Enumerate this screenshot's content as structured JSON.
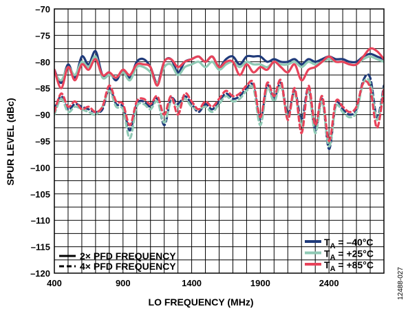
{
  "chart_data": {
    "type": "line",
    "xlabel": "LO FREQUENCY (MHz)",
    "ylabel": "SPUR LEVEL (dBc)",
    "xlim": [
      400,
      2800
    ],
    "ylim": [
      -120,
      -70
    ],
    "x_ticks": [
      400,
      900,
      1400,
      1900,
      2400
    ],
    "x_tick_labels": [
      "400",
      "900",
      "1400",
      "1900",
      "2400"
    ],
    "y_ticks": [
      -70,
      -75,
      -80,
      -85,
      -90,
      -95,
      -100,
      -105,
      -110,
      -115,
      -120
    ],
    "y_tick_labels": [
      "–70",
      "–75",
      "–80",
      "–85",
      "–90",
      "–95",
      "–100",
      "–105",
      "–110",
      "–115",
      "–120"
    ],
    "x_minor_step": 100,
    "y_minor_step": 2.5,
    "grid": true,
    "legend_style": {
      "position": "bottom-left",
      "items": [
        {
          "label": "2× PFD FREQUENCY",
          "dash": "solid"
        },
        {
          "label": "4× PFD FREQUENCY",
          "dash": "dashed"
        }
      ]
    },
    "legend_temp": {
      "position": "bottom-right",
      "items": [
        {
          "prefix": "T",
          "sub": "A",
          "suffix": " = –40°C",
          "color": "#1f3a7a"
        },
        {
          "prefix": "T",
          "sub": "A",
          "suffix": " = +25°C",
          "color": "#8fc9b4"
        },
        {
          "prefix": "T",
          "sub": "A",
          "suffix": " = +85°C",
          "color": "#e8435a"
        }
      ]
    },
    "side_code": "12488-027",
    "series": [
      {
        "temperature": "-40",
        "pfd": "2x",
        "dash": "solid",
        "color": "#1f3a7a",
        "x": [
          400,
          450,
          500,
          550,
          600,
          650,
          700,
          750,
          800,
          850,
          900,
          950,
          1000,
          1050,
          1100,
          1150,
          1200,
          1250,
          1300,
          1350,
          1400,
          1450,
          1500,
          1550,
          1600,
          1650,
          1700,
          1750,
          1800,
          1850,
          1900,
          1950,
          2000,
          2050,
          2100,
          2150,
          2200,
          2250,
          2300,
          2350,
          2400,
          2450,
          2500,
          2550,
          2600,
          2650,
          2700,
          2750,
          2800
        ],
        "y": [
          -81.5,
          -84,
          -80.5,
          -83,
          -79,
          -80.5,
          -78,
          -82.5,
          -82,
          -83.5,
          -81.5,
          -83,
          -80,
          -79.5,
          -81,
          -84,
          -80,
          -79.5,
          -82,
          -80,
          -79.5,
          -79,
          -80,
          -79,
          -81,
          -79.5,
          -79,
          -80.5,
          -79,
          -79,
          -79,
          -80,
          -79.5,
          -80,
          -80,
          -79.5,
          -80.5,
          -79.5,
          -80,
          -79.5,
          -79,
          -79.5,
          -79.5,
          -80,
          -80,
          -79,
          -78.5,
          -79,
          -79.5
        ]
      },
      {
        "temperature": "+25",
        "pfd": "2x",
        "dash": "solid",
        "color": "#8fc9b4",
        "x": [
          400,
          450,
          500,
          550,
          600,
          650,
          700,
          750,
          800,
          850,
          900,
          950,
          1000,
          1050,
          1100,
          1150,
          1200,
          1250,
          1300,
          1350,
          1400,
          1450,
          1500,
          1550,
          1600,
          1650,
          1700,
          1750,
          1800,
          1850,
          1900,
          1950,
          2000,
          2050,
          2100,
          2150,
          2200,
          2250,
          2300,
          2350,
          2400,
          2450,
          2500,
          2550,
          2600,
          2650,
          2700,
          2750,
          2800
        ],
        "y": [
          -82,
          -83.5,
          -81,
          -82.5,
          -80,
          -81,
          -79,
          -83,
          -82.5,
          -83,
          -82,
          -83.5,
          -81,
          -81,
          -82,
          -84,
          -81,
          -80.5,
          -82.5,
          -81,
          -80.5,
          -80,
          -81,
          -80,
          -81.5,
          -80.5,
          -80,
          -81,
          -80,
          -80.5,
          -80.5,
          -81,
          -80,
          -80.5,
          -80.5,
          -80,
          -81,
          -80,
          -80.5,
          -80,
          -79.5,
          -80,
          -80,
          -80.5,
          -80.5,
          -79.5,
          -79,
          -79.5,
          -80
        ]
      },
      {
        "temperature": "+85",
        "pfd": "2x",
        "dash": "solid",
        "color": "#e8435a",
        "x": [
          400,
          450,
          500,
          550,
          600,
          650,
          700,
          750,
          800,
          850,
          900,
          950,
          1000,
          1050,
          1100,
          1150,
          1200,
          1250,
          1300,
          1350,
          1400,
          1450,
          1500,
          1550,
          1600,
          1650,
          1700,
          1750,
          1800,
          1850,
          1900,
          1950,
          2000,
          2050,
          2100,
          2150,
          2200,
          2250,
          2300,
          2350,
          2400,
          2450,
          2500,
          2550,
          2600,
          2650,
          2700,
          2750,
          2800
        ],
        "y": [
          -81.5,
          -85,
          -81,
          -83.5,
          -80.5,
          -81.5,
          -79.5,
          -82.5,
          -82,
          -83,
          -81.5,
          -82.5,
          -80.5,
          -80.5,
          -81,
          -84.5,
          -80,
          -79.5,
          -81,
          -80,
          -79.5,
          -79,
          -80,
          -79,
          -81,
          -80,
          -80,
          -82.5,
          -80.5,
          -82,
          -81,
          -81.5,
          -80,
          -81,
          -82,
          -80.5,
          -83.5,
          -81.5,
          -81,
          -80,
          -79,
          -80,
          -80,
          -80.5,
          -80.5,
          -79,
          -77.5,
          -78,
          -79.5
        ]
      },
      {
        "temperature": "-40",
        "pfd": "4x",
        "dash": "dashed",
        "color": "#1f3a7a",
        "x": [
          400,
          450,
          500,
          550,
          600,
          650,
          700,
          750,
          800,
          850,
          900,
          950,
          1000,
          1050,
          1100,
          1150,
          1200,
          1250,
          1300,
          1350,
          1400,
          1450,
          1500,
          1550,
          1600,
          1650,
          1700,
          1750,
          1800,
          1850,
          1900,
          1950,
          2000,
          2050,
          2100,
          2150,
          2200,
          2250,
          2300,
          2350,
          2400,
          2450,
          2500,
          2550,
          2600,
          2650,
          2700,
          2750,
          2800
        ],
        "y": [
          -89,
          -86.5,
          -89,
          -88,
          -88.5,
          -89,
          -89.5,
          -89,
          -85,
          -88,
          -88.5,
          -93,
          -88,
          -87.5,
          -88.5,
          -87,
          -92,
          -87,
          -88,
          -86.5,
          -88,
          -89.5,
          -88,
          -89,
          -87.5,
          -86,
          -87,
          -86.5,
          -85,
          -84.5,
          -91,
          -84.5,
          -87,
          -84,
          -90,
          -85.5,
          -91,
          -85,
          -93,
          -87,
          -96.5,
          -88,
          -89,
          -90,
          -89,
          -83.5,
          -83,
          -90.5,
          -84.5
        ]
      },
      {
        "temperature": "+25",
        "pfd": "4x",
        "dash": "dashed",
        "color": "#8fc9b4",
        "x": [
          400,
          450,
          500,
          550,
          600,
          650,
          700,
          750,
          800,
          850,
          900,
          950,
          1000,
          1050,
          1100,
          1150,
          1200,
          1250,
          1300,
          1350,
          1400,
          1450,
          1500,
          1550,
          1600,
          1650,
          1700,
          1750,
          1800,
          1850,
          1900,
          1950,
          2000,
          2050,
          2100,
          2150,
          2200,
          2250,
          2300,
          2350,
          2400,
          2450,
          2500,
          2550,
          2600,
          2650,
          2700,
          2750,
          2800
        ],
        "y": [
          -90,
          -87,
          -89.5,
          -88.5,
          -89,
          -89.5,
          -90,
          -88.5,
          -85.5,
          -88.5,
          -89,
          -94.5,
          -88.5,
          -88,
          -89,
          -87.5,
          -91.5,
          -87.5,
          -88.5,
          -87,
          -88.5,
          -89,
          -88.5,
          -89.5,
          -88,
          -86.5,
          -87.5,
          -87,
          -85.5,
          -85,
          -92,
          -85,
          -87.5,
          -84.5,
          -90.5,
          -86,
          -92,
          -85.5,
          -93.5,
          -87.5,
          -96,
          -88.5,
          -89.5,
          -90.5,
          -89.5,
          -84,
          -84,
          -91,
          -85
        ]
      },
      {
        "temperature": "+85",
        "pfd": "4x",
        "dash": "dashed",
        "color": "#e8435a",
        "x": [
          400,
          450,
          500,
          550,
          600,
          650,
          700,
          750,
          800,
          850,
          900,
          950,
          1000,
          1050,
          1100,
          1150,
          1200,
          1250,
          1300,
          1350,
          1400,
          1450,
          1500,
          1550,
          1600,
          1650,
          1700,
          1750,
          1800,
          1850,
          1900,
          1950,
          2000,
          2050,
          2100,
          2150,
          2200,
          2250,
          2300,
          2350,
          2400,
          2450,
          2500,
          2550,
          2600,
          2650,
          2700,
          2750,
          2800
        ],
        "y": [
          -89.5,
          -86,
          -88.5,
          -87.5,
          -89,
          -88.5,
          -89.5,
          -88.5,
          -84.5,
          -87.5,
          -88,
          -92,
          -87.5,
          -87,
          -88,
          -86.5,
          -90,
          -86.5,
          -90,
          -86,
          -87.5,
          -89,
          -87.5,
          -88.5,
          -87,
          -85.5,
          -86.5,
          -86,
          -84.5,
          -84,
          -90.5,
          -84,
          -86.5,
          -83.5,
          -91,
          -85,
          -93.5,
          -84.5,
          -92,
          -86.5,
          -95,
          -87.5,
          -88.5,
          -89.5,
          -88.5,
          -84,
          -85,
          -92.5,
          -85
        ]
      }
    ]
  }
}
